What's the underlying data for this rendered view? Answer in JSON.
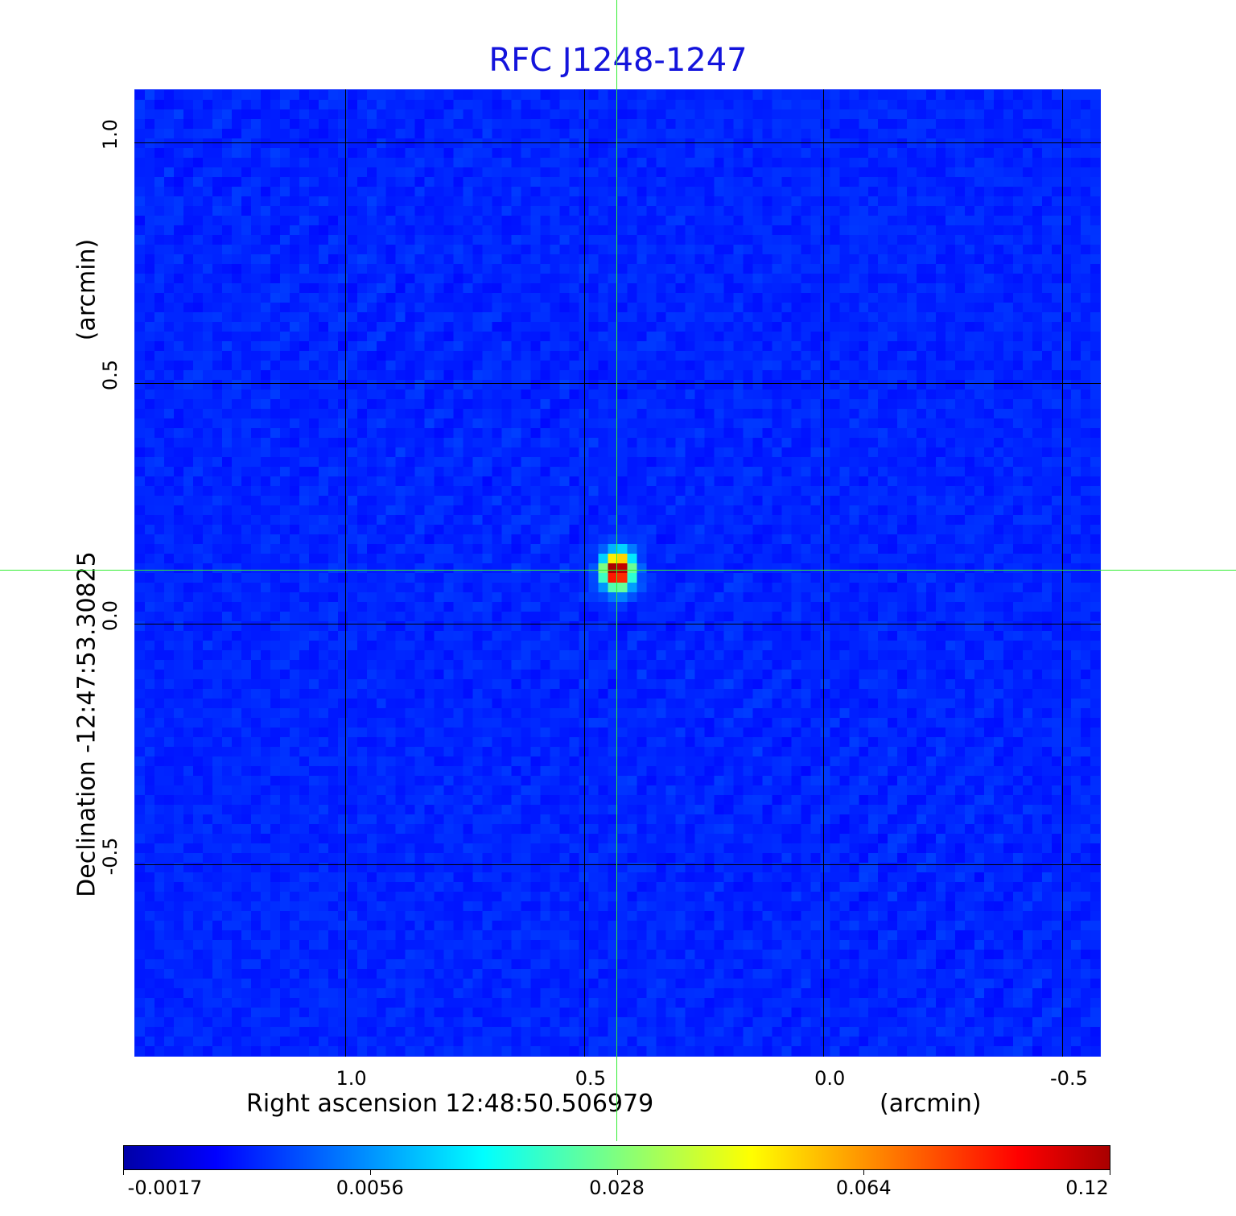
{
  "chart_data": {
    "type": "heatmap",
    "title": "RFC J1248-1247",
    "xlabel": "Right ascension  12:48:50.506979",
    "xunit": "(arcmin)",
    "ylabel": "Declination  -12:47:53.30825",
    "yunit": "(arcmin)",
    "xlim": [
      1.44,
      -0.58
    ],
    "ylim": [
      -0.9,
      1.11
    ],
    "x_ticks": [
      "1.0",
      "0.5",
      "0.0",
      "-0.5"
    ],
    "x_tick_values": [
      1.0,
      0.5,
      0.0,
      -0.5
    ],
    "y_ticks": [
      "1.0",
      "0.5",
      "0.0",
      "-0.5"
    ],
    "y_tick_values": [
      1.0,
      0.5,
      0.0,
      -0.5
    ],
    "grid": true,
    "colormap": "jet",
    "colorbar": {
      "placement": "bottom",
      "ticks": [
        "-0.0017",
        "0.0056",
        "0.028",
        "0.064",
        "0.12"
      ],
      "range": [
        -0.0017,
        0.12
      ]
    },
    "source_peak": {
      "x": 0.43,
      "y": 0.11,
      "value": 0.12
    },
    "crosshair": {
      "x": 0.43,
      "y": 0.11,
      "color": "#33ee33"
    },
    "background_level": 0.0
  }
}
